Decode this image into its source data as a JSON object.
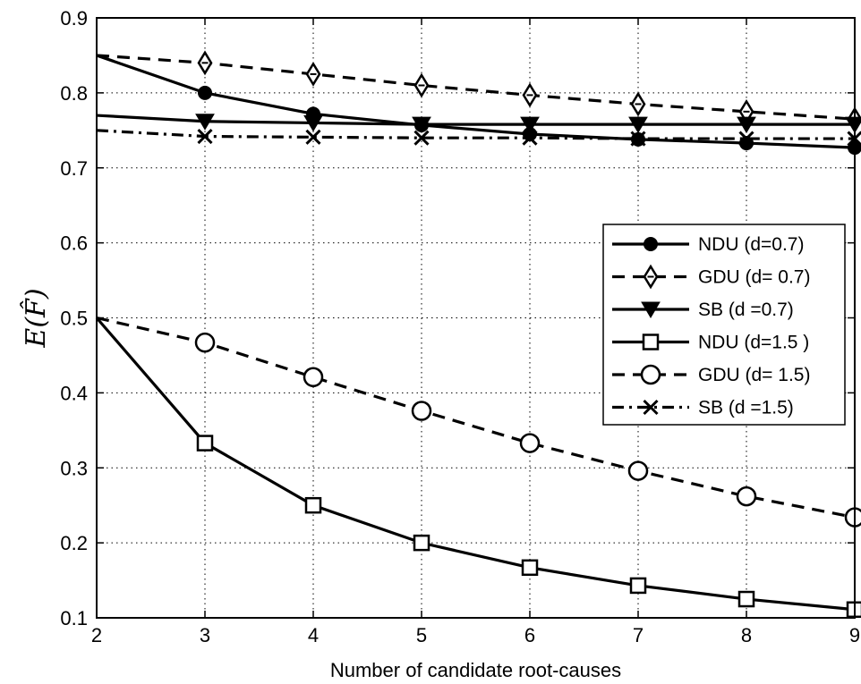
{
  "chart_data": {
    "type": "line",
    "title": "",
    "xlabel": "Number of candidate root-causes",
    "ylabel": "E(F̂)",
    "xlim": [
      2,
      9
    ],
    "ylim": [
      0.1,
      0.9
    ],
    "xticks": [
      "2",
      "3",
      "4",
      "5",
      "6",
      "7",
      "8",
      "9"
    ],
    "yticks": [
      "0.1",
      "0.2",
      "0.3",
      "0.4",
      "0.5",
      "0.6",
      "0.7",
      "0.8",
      "0.9"
    ],
    "grid": true,
    "legend_position": "right",
    "x": [
      2,
      3,
      4,
      5,
      6,
      7,
      8,
      9
    ],
    "series": [
      {
        "name": "NDU (d=0.7)",
        "style": "solid",
        "marker": "filled-circle",
        "values": [
          0.85,
          0.8,
          0.772,
          0.757,
          0.745,
          0.738,
          0.733,
          0.727
        ]
      },
      {
        "name": "GDU (d= 0.7)",
        "style": "dashed",
        "marker": "diamond",
        "values": [
          0.85,
          0.84,
          0.825,
          0.81,
          0.797,
          0.785,
          0.775,
          0.765
        ]
      },
      {
        "name": "SB  (d =0.7)",
        "style": "solid",
        "marker": "filled-triangle-down",
        "values": [
          0.77,
          0.762,
          0.76,
          0.758,
          0.758,
          0.758,
          0.758,
          0.758
        ]
      },
      {
        "name": "NDU (d=1.5 )",
        "style": "solid",
        "marker": "square",
        "values": [
          0.5,
          0.333,
          0.25,
          0.2,
          0.167,
          0.143,
          0.125,
          0.111
        ]
      },
      {
        "name": "GDU (d= 1.5)",
        "style": "dashed",
        "marker": "circle",
        "values": [
          0.5,
          0.467,
          0.421,
          0.376,
          0.333,
          0.296,
          0.262,
          0.234
        ]
      },
      {
        "name": "SB  (d =1.5)",
        "style": "dashdot",
        "marker": "x",
        "values": [
          0.75,
          0.742,
          0.741,
          0.74,
          0.74,
          0.739,
          0.739,
          0.739
        ]
      }
    ]
  }
}
